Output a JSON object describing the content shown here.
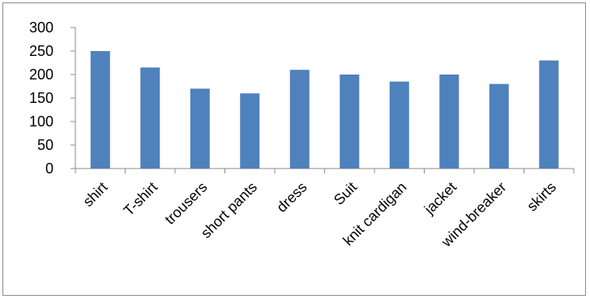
{
  "chart_data": {
    "type": "bar",
    "categories": [
      "shirt",
      "T-shirt",
      "trousers",
      "short pants",
      "dress",
      "Suit",
      "knit cardigan",
      "jacket",
      "wind-breaker",
      "skirts"
    ],
    "values": [
      250,
      215,
      170,
      160,
      210,
      200,
      185,
      200,
      180,
      230
    ],
    "title": "",
    "xlabel": "",
    "ylabel": "",
    "ylim": [
      0,
      300
    ],
    "yticks": [
      "0",
      "50",
      "100",
      "150",
      "200",
      "250",
      "300"
    ],
    "grid": false,
    "legend": "none",
    "bar_color": "#4f81bd",
    "axis_color": "#8c8c8c"
  }
}
